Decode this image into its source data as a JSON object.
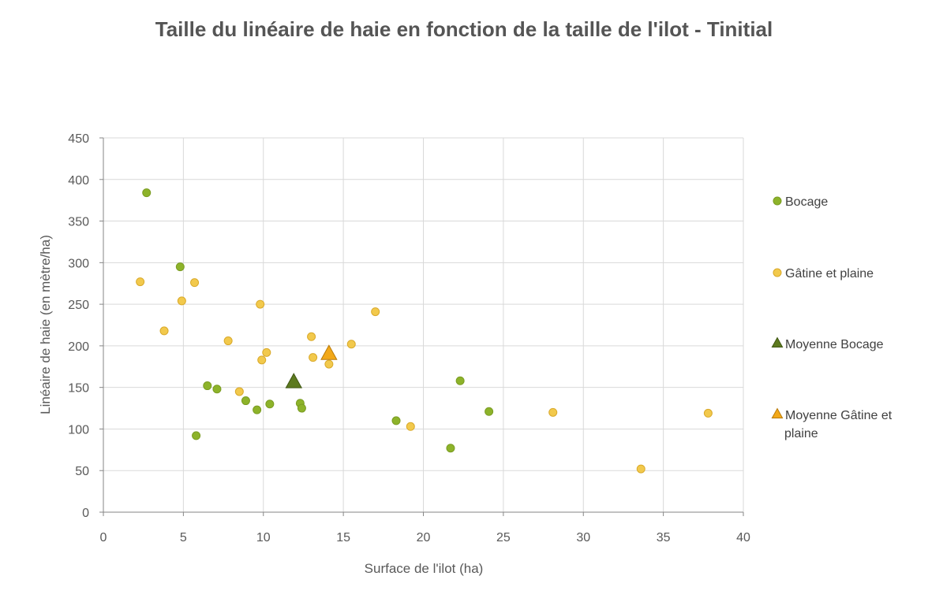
{
  "chart_data": {
    "type": "scatter",
    "title": "Taille du linéaire de haie en fonction de la taille de l'ilot - Tinitial",
    "xlabel": "Surface de l'ilot (ha)",
    "ylabel": "Linéaire de haie (en mètre/ha)",
    "xlim": [
      0,
      40
    ],
    "ylim": [
      0,
      450
    ],
    "xticks": [
      0,
      5,
      10,
      15,
      20,
      25,
      30,
      35,
      40
    ],
    "yticks": [
      0,
      50,
      100,
      150,
      200,
      250,
      300,
      350,
      400,
      450
    ],
    "grid": true,
    "legend_position": "right",
    "series": [
      {
        "name": "Bocage",
        "marker": "circle",
        "color": "#8db32a",
        "stroke": "#7a9c22",
        "points": [
          {
            "x": 2.7,
            "y": 384
          },
          {
            "x": 4.8,
            "y": 295
          },
          {
            "x": 6.5,
            "y": 152
          },
          {
            "x": 7.1,
            "y": 148
          },
          {
            "x": 5.8,
            "y": 92
          },
          {
            "x": 8.9,
            "y": 134
          },
          {
            "x": 9.6,
            "y": 123
          },
          {
            "x": 10.4,
            "y": 130
          },
          {
            "x": 12.3,
            "y": 131
          },
          {
            "x": 12.4,
            "y": 125
          },
          {
            "x": 18.3,
            "y": 110
          },
          {
            "x": 21.7,
            "y": 77
          },
          {
            "x": 22.3,
            "y": 158
          },
          {
            "x": 24.1,
            "y": 121
          }
        ]
      },
      {
        "name": "Gâtine et plaine",
        "marker": "circle",
        "color": "#f2c94c",
        "stroke": "#d9a92a",
        "points": [
          {
            "x": 2.3,
            "y": 277
          },
          {
            "x": 3.8,
            "y": 218
          },
          {
            "x": 4.9,
            "y": 254
          },
          {
            "x": 5.7,
            "y": 276
          },
          {
            "x": 7.8,
            "y": 206
          },
          {
            "x": 8.5,
            "y": 145
          },
          {
            "x": 9.8,
            "y": 250
          },
          {
            "x": 9.9,
            "y": 183
          },
          {
            "x": 10.2,
            "y": 192
          },
          {
            "x": 13.0,
            "y": 211
          },
          {
            "x": 13.1,
            "y": 186
          },
          {
            "x": 14.1,
            "y": 178
          },
          {
            "x": 15.5,
            "y": 202
          },
          {
            "x": 17.0,
            "y": 241
          },
          {
            "x": 19.2,
            "y": 103
          },
          {
            "x": 28.1,
            "y": 120
          },
          {
            "x": 33.6,
            "y": 52
          },
          {
            "x": 37.8,
            "y": 119
          }
        ]
      },
      {
        "name": "Moyenne Bocage",
        "marker": "triangle",
        "color": "#5d7a1f",
        "stroke": "#3f5613",
        "points": [
          {
            "x": 11.9,
            "y": 156
          }
        ]
      },
      {
        "name": "Moyenne Gâtine et plaine",
        "marker": "triangle",
        "color": "#f2a818",
        "stroke": "#b87a0a",
        "points": [
          {
            "x": 14.1,
            "y": 190
          }
        ]
      }
    ]
  },
  "legend": {
    "items": [
      {
        "label_lines": [
          "Bocage"
        ]
      },
      {
        "label_lines": [
          "Gâtine et plaine"
        ]
      },
      {
        "label_lines": [
          "Moyenne Bocage"
        ]
      },
      {
        "label_lines": [
          "Moyenne Gâtine et",
          "plaine"
        ]
      }
    ]
  }
}
